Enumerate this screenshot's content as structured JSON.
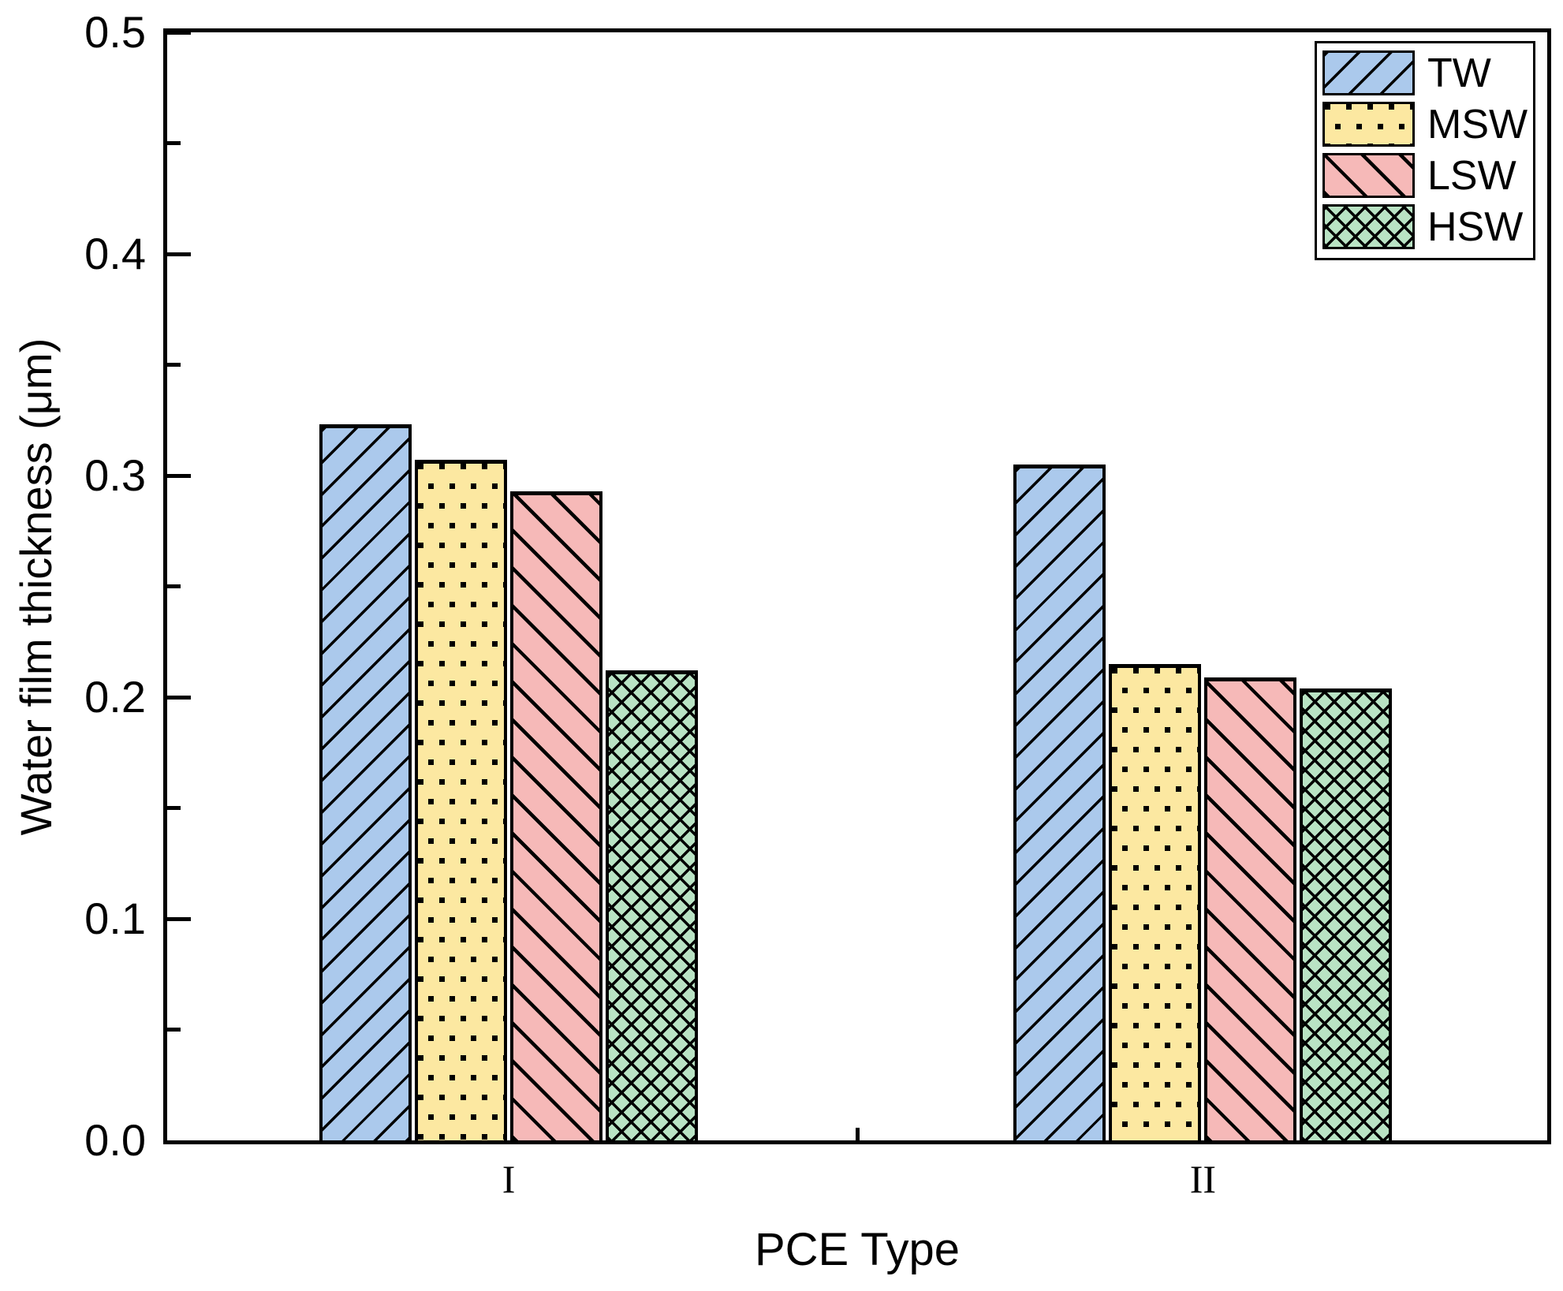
{
  "chart_data": {
    "type": "bar",
    "categories": [
      "I",
      "II"
    ],
    "series": [
      {
        "name": "TW",
        "values": [
          0.323,
          0.305
        ],
        "fill": "#abc9ec",
        "hatch": "diagonal-forward"
      },
      {
        "name": "MSW",
        "values": [
          0.307,
          0.215
        ],
        "fill": "#fce8a1",
        "hatch": "dots"
      },
      {
        "name": "LSW",
        "values": [
          0.293,
          0.209
        ],
        "fill": "#f6b9b8",
        "hatch": "diagonal-backward"
      },
      {
        "name": "HSW",
        "values": [
          0.212,
          0.204
        ],
        "fill": "#b9e3c4",
        "hatch": "crosshatch"
      }
    ],
    "xlabel": "PCE Type",
    "ylabel": "Water film thickness (μm)",
    "ylim": [
      0,
      0.5
    ],
    "yticks": [
      {
        "value": 0.0,
        "label": "0.0"
      },
      {
        "value": 0.1,
        "label": "0.1"
      },
      {
        "value": 0.2,
        "label": "0.2"
      },
      {
        "value": 0.3,
        "label": "0.3"
      },
      {
        "value": 0.4,
        "label": "0.4"
      },
      {
        "value": 0.5,
        "label": "0.5"
      }
    ],
    "yticks_minor": [
      0.05,
      0.15,
      0.25,
      0.35,
      0.45
    ],
    "legend": {
      "position": "top-right",
      "entries": [
        "TW",
        "MSW",
        "LSW",
        "HSW"
      ]
    },
    "grid": false,
    "axis_color": "#000000",
    "background": "#ffffff"
  }
}
